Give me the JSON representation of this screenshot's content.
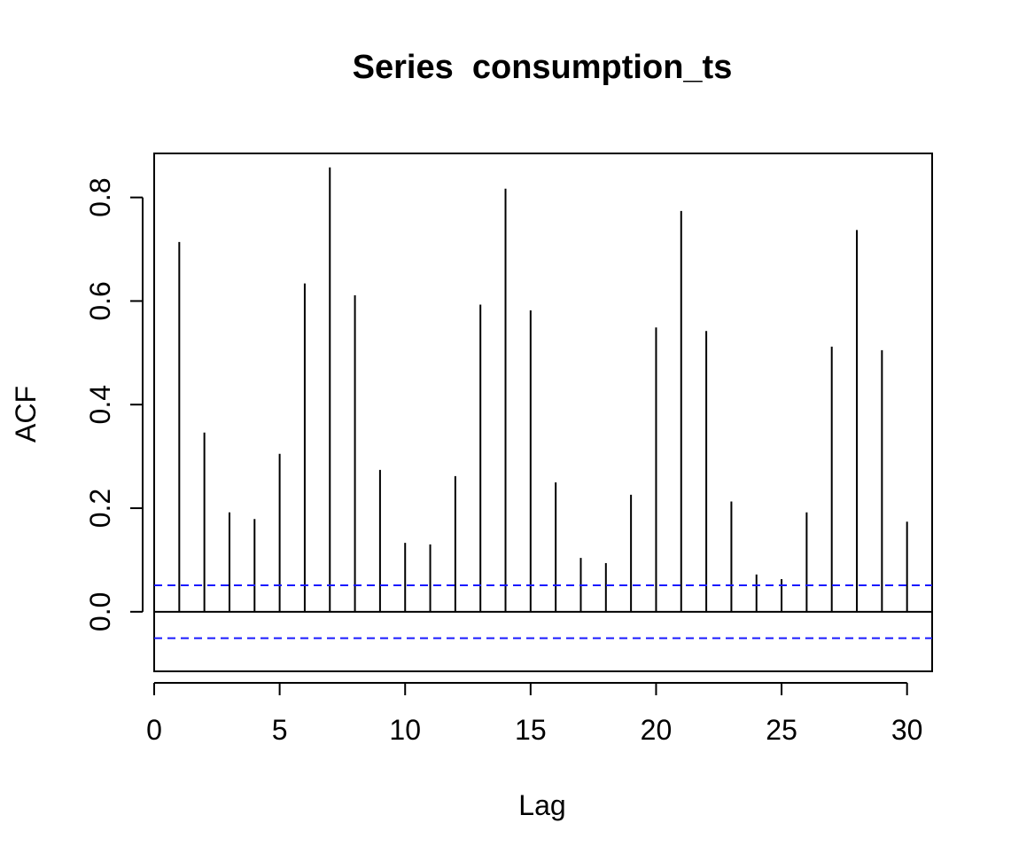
{
  "chart_data": {
    "type": "bar",
    "title": "Series  consumption_ts",
    "xlabel": "Lag",
    "ylabel": "ACF",
    "xlim": [
      0,
      31
    ],
    "ylim": [
      -0.115,
      0.885
    ],
    "x_ticks": [
      0,
      5,
      10,
      15,
      20,
      25,
      30
    ],
    "x_tick_labels": [
      "0",
      "5",
      "10",
      "15",
      "20",
      "25",
      "30"
    ],
    "y_ticks": [
      0.0,
      0.2,
      0.4,
      0.6,
      0.8
    ],
    "y_tick_labels": [
      "0.0",
      "0.2",
      "0.4",
      "0.6",
      "0.8"
    ],
    "lags": [
      1,
      2,
      3,
      4,
      5,
      6,
      7,
      8,
      9,
      10,
      11,
      12,
      13,
      14,
      15,
      16,
      17,
      18,
      19,
      20,
      21,
      22,
      23,
      24,
      25,
      26,
      27,
      28,
      29,
      30
    ],
    "values": [
      0.714,
      0.346,
      0.192,
      0.179,
      0.305,
      0.634,
      0.858,
      0.611,
      0.274,
      0.133,
      0.13,
      0.262,
      0.593,
      0.817,
      0.582,
      0.25,
      0.104,
      0.094,
      0.226,
      0.549,
      0.774,
      0.542,
      0.213,
      0.072,
      0.063,
      0.192,
      0.512,
      0.737,
      0.505,
      0.174
    ],
    "confidence_bound": 0.051,
    "grid": false,
    "colors": {
      "bars": "#000000",
      "confidence_lines": "#1a1aff",
      "zero_line": "#000000"
    }
  }
}
